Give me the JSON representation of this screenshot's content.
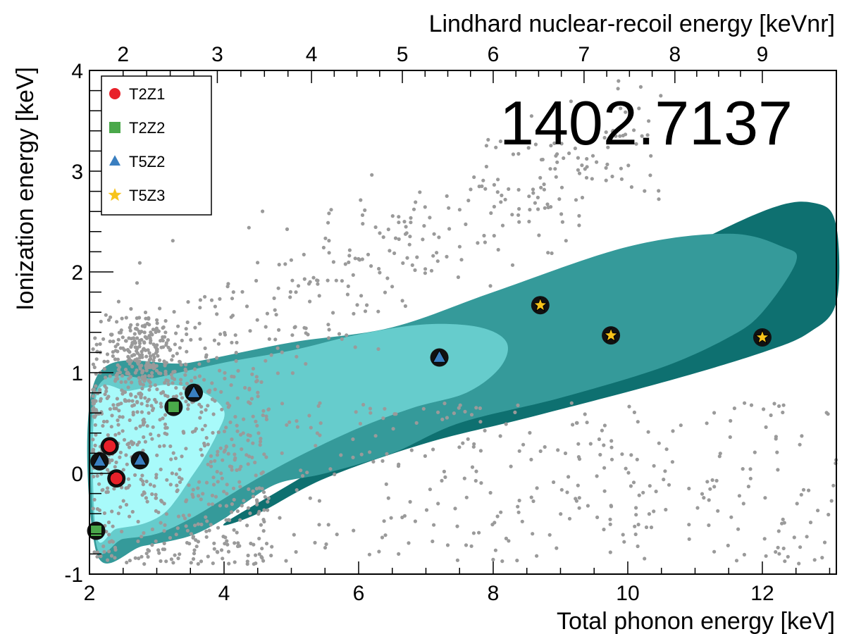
{
  "chart_data": {
    "type": "scatter",
    "title": "",
    "annotation": "1402.7137",
    "xlabel": "Total phonon energy [keV]",
    "ylabel": "Ionization energy [keV]",
    "x2label": "Lindhard nuclear-recoil energy [keVnr]",
    "xlim": [
      2,
      13.1
    ],
    "ylim": [
      -1,
      4
    ],
    "x_ticks": [
      2,
      4,
      6,
      8,
      10,
      12
    ],
    "y_ticks": [
      -1,
      0,
      1,
      2,
      3,
      4
    ],
    "x2_ticks": [
      {
        "label": "2",
        "x": 2.5
      },
      {
        "label": "3",
        "x": 3.9
      },
      {
        "label": "4",
        "x": 5.3
      },
      {
        "label": "5",
        "x": 6.65
      },
      {
        "label": "6",
        "x": 8.0
      },
      {
        "label": "7",
        "x": 9.35
      },
      {
        "label": "8",
        "x": 10.7
      },
      {
        "label": "9",
        "x": 12.0
      }
    ],
    "grid": false,
    "legend_position": "top-left",
    "colors": {
      "T2Z1": "#e8212a",
      "T2Z2": "#4aa84a",
      "T5Z2": "#3a7fc0",
      "T5Z3": "#f7c31a",
      "background_points": "#9a9a9a",
      "band_outer": "#0e7070",
      "band_mid": "#359a9a",
      "band_inner": "#66cccc",
      "band_core": "#a8fafa"
    },
    "series": [
      {
        "name": "T2Z1",
        "marker": "circle",
        "points": [
          [
            2.3,
            0.27
          ],
          [
            2.4,
            -0.05
          ]
        ]
      },
      {
        "name": "T2Z2",
        "marker": "square",
        "points": [
          [
            2.1,
            -0.57
          ],
          [
            3.25,
            0.66
          ]
        ]
      },
      {
        "name": "T5Z2",
        "marker": "triangle",
        "points": [
          [
            2.15,
            0.12
          ],
          [
            2.75,
            0.13
          ],
          [
            3.55,
            0.8
          ],
          [
            7.2,
            1.15
          ]
        ]
      },
      {
        "name": "T5Z3",
        "marker": "star",
        "points": [
          [
            8.7,
            1.67
          ],
          [
            9.75,
            1.37
          ],
          [
            12.0,
            1.35
          ]
        ]
      }
    ],
    "contours": [
      {
        "name": "band_outer",
        "points": [
          [
            8.0,
            1.25
          ],
          [
            10.0,
            1.95
          ],
          [
            12.0,
            2.6
          ],
          [
            12.8,
            2.68
          ],
          [
            13.1,
            2.45
          ],
          [
            13.1,
            1.7
          ],
          [
            12.7,
            1.4
          ],
          [
            12.0,
            1.2
          ],
          [
            10.5,
            0.9
          ],
          [
            8.5,
            0.55
          ],
          [
            7.0,
            0.3
          ],
          [
            5.5,
            -0.05
          ],
          [
            4.5,
            -0.4
          ],
          [
            4.0,
            -0.5
          ],
          [
            5.0,
            -0.1
          ],
          [
            6.5,
            0.5
          ],
          [
            8.0,
            1.25
          ]
        ]
      },
      {
        "name": "band_mid",
        "points": [
          [
            2.1,
            0.95
          ],
          [
            3.5,
            1.1
          ],
          [
            5.0,
            1.3
          ],
          [
            6.5,
            1.45
          ],
          [
            8.0,
            1.8
          ],
          [
            10.0,
            2.25
          ],
          [
            11.5,
            2.38
          ],
          [
            12.3,
            2.25
          ],
          [
            12.5,
            2.1
          ],
          [
            12.0,
            1.6
          ],
          [
            11.5,
            1.35
          ],
          [
            10.5,
            1.05
          ],
          [
            9.0,
            0.75
          ],
          [
            7.5,
            0.5
          ],
          [
            6.5,
            0.2
          ],
          [
            5.5,
            0.0
          ],
          [
            4.8,
            -0.1
          ],
          [
            4.3,
            -0.3
          ],
          [
            4.0,
            -0.45
          ],
          [
            3.5,
            -0.62
          ],
          [
            2.8,
            -0.72
          ],
          [
            2.1,
            -0.78
          ]
        ]
      },
      {
        "name": "band_inner",
        "points": [
          [
            2.1,
            0.82
          ],
          [
            3.0,
            0.95
          ],
          [
            4.0,
            1.1
          ],
          [
            5.0,
            1.22
          ],
          [
            6.0,
            1.38
          ],
          [
            7.0,
            1.48
          ],
          [
            7.8,
            1.45
          ],
          [
            8.2,
            1.3
          ],
          [
            8.1,
            1.05
          ],
          [
            7.6,
            0.8
          ],
          [
            6.8,
            0.65
          ],
          [
            6.0,
            0.45
          ],
          [
            5.2,
            0.2
          ],
          [
            4.5,
            -0.05
          ],
          [
            4.0,
            -0.25
          ],
          [
            3.5,
            -0.45
          ],
          [
            3.0,
            -0.6
          ],
          [
            2.5,
            -0.65
          ],
          [
            2.1,
            -0.7
          ]
        ]
      },
      {
        "name": "band_core",
        "points": [
          [
            2.1,
            0.76
          ],
          [
            2.6,
            0.82
          ],
          [
            3.2,
            0.88
          ],
          [
            3.7,
            0.8
          ],
          [
            4.0,
            0.62
          ],
          [
            3.9,
            0.4
          ],
          [
            3.7,
            0.15
          ],
          [
            3.5,
            -0.05
          ],
          [
            3.3,
            -0.25
          ],
          [
            3.1,
            -0.4
          ],
          [
            2.8,
            -0.5
          ],
          [
            2.4,
            -0.55
          ],
          [
            2.1,
            -0.6
          ]
        ]
      }
    ],
    "background_points_count": 1500
  }
}
